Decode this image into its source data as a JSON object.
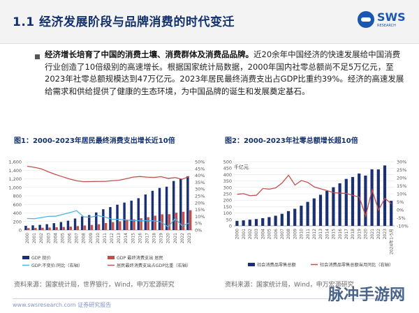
{
  "header": {
    "title": "1.1 经济发展阶段与品牌消费的时代变迁",
    "logo_brand": "SWS",
    "logo_sub": "RESEARCH"
  },
  "body": {
    "lead": "经济增长培育了中国的消费土壤、消费群体及消费品品牌。",
    "text": "近20余年中国经济的快速发展给中国消费行业创造了10倍级别的高速增长。根据国家统计局数据，2000年国内社零总额尚不足5万亿元，至2023年社零总额规模达到47万亿元。2023年居民最终消费支出占GDP比重约39%。经济的高速发展给需求和供给提供了健康的生态环境，为中国品牌的诞生和发展奠定基石。"
  },
  "figure1": {
    "title": "图1：2000-2023年居民最终消费支出增长近10倍",
    "source": "资料来源：国家统计局，世界银行，Wind，申万宏源研究",
    "legend": [
      "GDP 现价",
      "GDP 最终消费支出 居民",
      "GDP:不变价:同比（右轴）",
      "居民最终消费支出占GDP比重（右轴）"
    ]
  },
  "figure2": {
    "title": "图2：2000-2023年社零总额增长超10倍",
    "source": "资料来源：国家统计局，Wind，申万宏源研究",
    "unit": "千亿元",
    "legend": [
      "社会消费品零售总额",
      "社会消费品零售总额当月同比（右轴）"
    ]
  },
  "footer": {
    "text": "www.swsresearch.com  证券研究报告"
  },
  "watermark": "脉冲手游网",
  "chart_data": [
    {
      "type": "bar",
      "title": "图1：2000-2023年居民最终消费支出增长近10倍",
      "categories": [
        "2000",
        "2001",
        "2002",
        "2003",
        "2004",
        "2005",
        "2006",
        "2007",
        "2008",
        "2009",
        "2010",
        "2011",
        "2012",
        "2013",
        "2014",
        "2015",
        "2016",
        "2017",
        "2018",
        "2019",
        "2020",
        "2021",
        "2022",
        "2023"
      ],
      "series": [
        {
          "name": "GDP 现价",
          "axis": "left",
          "values": [
            100,
            110,
            121,
            137,
            161,
            187,
            219,
            270,
            319,
            349,
            412,
            487,
            538,
            593,
            643,
            689,
            745,
            833,
            919,
            986,
            1016,
            1149,
            1204,
            1260
          ]
        },
        {
          "name": "GDP 最终消费支出 居民",
          "axis": "left",
          "values": [
            46,
            50,
            54,
            58,
            65,
            72,
            80,
            93,
            108,
            120,
            136,
            163,
            186,
            205,
            229,
            251,
            276,
            302,
            336,
            368,
            372,
            406,
            428,
            465
          ]
        },
        {
          "name": "GDP:不变价:同比（右轴）",
          "axis": "right",
          "type": "line",
          "values": [
            8.5,
            8.3,
            9.1,
            10.0,
            10.1,
            11.4,
            12.7,
            14.2,
            9.7,
            9.4,
            10.6,
            9.6,
            7.9,
            7.8,
            7.4,
            7.0,
            6.8,
            6.9,
            6.7,
            6.0,
            2.2,
            8.4,
            3.0,
            5.2
          ]
        },
        {
          "name": "居民最终消费支出占GDP比重（右轴）",
          "axis": "right",
          "type": "line",
          "values": [
            46.7,
            45.9,
            44.8,
            42.6,
            40.7,
            39.0,
            37.4,
            36.1,
            35.4,
            35.5,
            35.6,
            35.6,
            36.1,
            36.4,
            37.5,
            38.7,
            39.2,
            38.7,
            38.5,
            39.1,
            37.8,
            38.4,
            37.2,
            39.2
          ]
        }
      ],
      "y_left_ticks": [
        "0",
        "200",
        "400",
        "600",
        "800",
        "1,000",
        "1,200",
        "1,400",
        "1,600"
      ],
      "y_right_ticks": [
        "0%",
        "5%",
        "10%",
        "15%",
        "20%",
        "25%",
        "30%",
        "35%",
        "40%",
        "45%",
        "50%"
      ],
      "ylim_left": [
        0,
        1600
      ],
      "ylim_right": [
        0,
        50
      ],
      "colors": {
        "gdp": "#1b2f73",
        "consumption": "#c0504d",
        "growth": "#4db3e6",
        "share": "#c0504d"
      }
    },
    {
      "type": "bar",
      "title": "图2：2000-2023年社零总额增长超10倍",
      "ylabel": "千亿元",
      "categories": [
        "2000",
        "2001",
        "2002",
        "2003",
        "2004",
        "2005",
        "2006",
        "2007",
        "2008",
        "2009",
        "2010",
        "2011",
        "2012",
        "2013",
        "2014",
        "2015",
        "2016",
        "2017",
        "2018",
        "2019",
        "2020",
        "2021",
        "2022",
        "2023",
        "2024年1-5月"
      ],
      "series": [
        {
          "name": "社会消费品零售总额",
          "axis": "left",
          "values": [
            39,
            43,
            48,
            53,
            60,
            68,
            79,
            94,
            115,
            133,
            157,
            187,
            214,
            242,
            272,
            301,
            332,
            366,
            381,
            408,
            392,
            441,
            440,
            471,
            195
          ]
        },
        {
          "name": "社会消费品零售总额当月同比（右轴）",
          "axis": "right",
          "type": "line",
          "values": [
            9.7,
            10.1,
            8.8,
            9.1,
            13.3,
            12.9,
            13.7,
            16.8,
            21.6,
            15.5,
            18.3,
            17.1,
            14.3,
            13.1,
            12.0,
            10.7,
            10.4,
            10.2,
            9.0,
            8.0,
            -3.9,
            12.5,
            -0.2,
            7.2,
            3.7
          ]
        }
      ],
      "y_left_ticks": [
        "0",
        "50",
        "100",
        "150",
        "200",
        "250",
        "300",
        "350",
        "400",
        "450",
        "500"
      ],
      "y_right_ticks": [
        "-10%",
        "-5%",
        "0%",
        "5%",
        "10%",
        "15%",
        "20%",
        "25%",
        "30%"
      ],
      "ylim_left": [
        0,
        500
      ],
      "ylim_right": [
        -10,
        30
      ],
      "colors": {
        "retail": "#1b2f73",
        "yoy": "#c0504d"
      }
    }
  ]
}
